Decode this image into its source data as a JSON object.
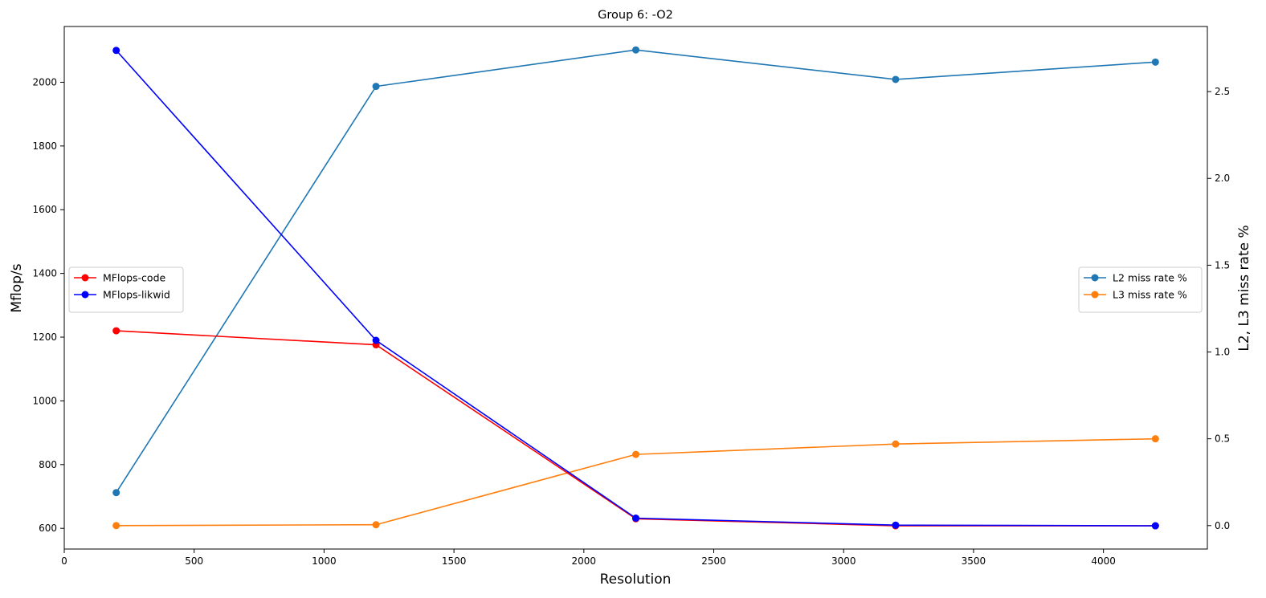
{
  "chart_data": {
    "type": "line",
    "title": "Group 6: -O2",
    "xlabel": "Resolution",
    "xlim": [
      0,
      4400
    ],
    "xticks": [
      0,
      500,
      1000,
      1500,
      2000,
      2500,
      3000,
      3500,
      4000
    ],
    "x": [
      200,
      1200,
      2200,
      3200,
      4200
    ],
    "left_axis": {
      "label": "Mflop/s",
      "ylim": [
        535,
        2175
      ],
      "ticks": [
        600,
        800,
        1000,
        1200,
        1400,
        1600,
        1800,
        2000
      ],
      "legend_position": "center-left",
      "series": [
        {
          "name": "MFlops-code",
          "color": "#ff0000",
          "values": [
            1220,
            1176,
            630,
            608,
            608
          ]
        },
        {
          "name": "MFlops-likwid",
          "color": "#0000ff",
          "values": [
            2100,
            1190,
            632,
            610,
            608
          ]
        }
      ]
    },
    "right_axis": {
      "label": "L2, L3 miss rate %",
      "ylim": [
        -0.135,
        2.875
      ],
      "ticks": [
        0.0,
        0.5,
        1.0,
        1.5,
        2.0,
        2.5
      ],
      "legend_position": "center-right",
      "series": [
        {
          "name": "L2 miss rate %",
          "color": "#1f77b4",
          "values": [
            0.19,
            2.53,
            2.74,
            2.57,
            2.67
          ]
        },
        {
          "name": "L3 miss rate %",
          "color": "#ff7f0e",
          "values": [
            0.0,
            0.005,
            0.41,
            0.47,
            0.5
          ]
        }
      ]
    }
  }
}
